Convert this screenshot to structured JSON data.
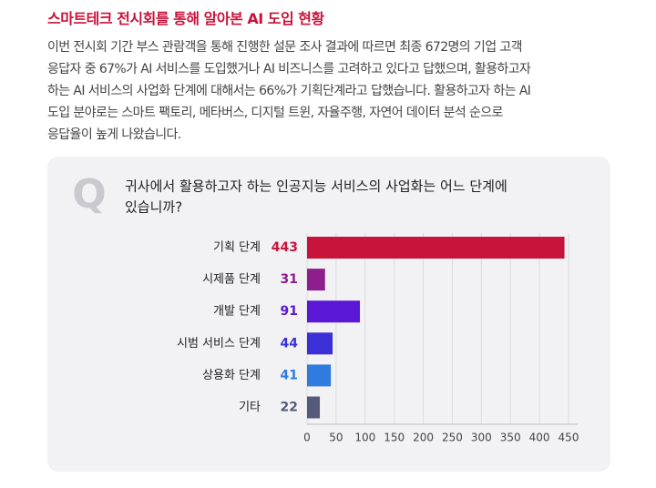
{
  "header": {
    "title": "스마트테크 전시회를 통해 알아본 AI 도입 현황",
    "body": [
      "이번 전시회 기간 부스 관람객을 통해 진행한 설문 조사 결과에 따르면 최종 672명의 기업 고객",
      "응답자 중 67%가 AI 서비스를 도입했거나 AI 비즈니스를 고려하고 있다고 답했으며, 활용하고자",
      "하는 AI 서비스의 사업화 단계에 대해서는 66%가 기획단계라고 답했습니다. 활용하고자 하는 AI",
      "도입 분야로는 스마트 팩토리, 메타버스, 디지털 트윈, 자율주행, 자연어 데이터 분석 순으로",
      "응답율이 높게 나왔습니다."
    ]
  },
  "question_marker": "Q",
  "chart_data": {
    "type": "bar",
    "orientation": "horizontal",
    "title": [
      "귀사에서 활용하고자 하는 인공지능 서비스의 사업화는 어느 단계에",
      "있습니까?"
    ],
    "categories": [
      "기획 단계",
      "시제품 단계",
      "개발 단계",
      "시범 서비스 단계",
      "상용화 단계",
      "기타"
    ],
    "values": [
      443,
      31,
      91,
      44,
      41,
      22
    ],
    "colors": [
      "#c8133b",
      "#8e1d8e",
      "#5a17d6",
      "#3b2fd8",
      "#2f7be0",
      "#555a7a"
    ],
    "xlim": [
      0,
      450
    ],
    "xticks": [
      0,
      50,
      100,
      150,
      200,
      250,
      300,
      350,
      400,
      450
    ],
    "grid": true
  }
}
